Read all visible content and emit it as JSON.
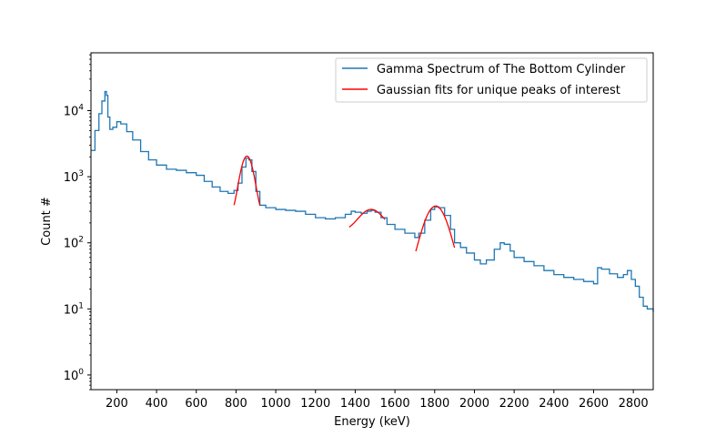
{
  "chart_data": {
    "type": "line",
    "title": "",
    "xlabel": "Energy (keV)",
    "ylabel": "Count #",
    "xlim": [
      70,
      2900
    ],
    "ylim": [
      0.6,
      75000
    ],
    "yscale": "log",
    "x_ticks": [
      200,
      400,
      600,
      800,
      1000,
      1200,
      1400,
      1600,
      1800,
      2000,
      2200,
      2400,
      2600,
      2800
    ],
    "x_tick_labels": [
      "200",
      "400",
      "600",
      "800",
      "1000",
      "1200",
      "1400",
      "1600",
      "1800",
      "2000",
      "2200",
      "2400",
      "2600",
      "2800"
    ],
    "y_ticks": [
      1,
      10,
      100,
      1000,
      10000
    ],
    "y_tick_labels": [
      {
        "base": "10",
        "exp": "0"
      },
      {
        "base": "10",
        "exp": "1"
      },
      {
        "base": "10",
        "exp": "2"
      },
      {
        "base": "10",
        "exp": "3"
      },
      {
        "base": "10",
        "exp": "4"
      }
    ],
    "grid": false,
    "legend_position": "top-right",
    "series": [
      {
        "name": "Gamma Spectrum of The Bottom Cylinder",
        "color": "#1f77b4",
        "style": "step",
        "points": [
          [
            70,
            2500
          ],
          [
            90,
            5000
          ],
          [
            110,
            9000
          ],
          [
            125,
            14000
          ],
          [
            140,
            19500
          ],
          [
            148,
            17000
          ],
          [
            155,
            8000
          ],
          [
            165,
            5200
          ],
          [
            180,
            5600
          ],
          [
            200,
            6800
          ],
          [
            220,
            6300
          ],
          [
            250,
            4800
          ],
          [
            280,
            3600
          ],
          [
            320,
            2400
          ],
          [
            360,
            1800
          ],
          [
            400,
            1500
          ],
          [
            450,
            1300
          ],
          [
            500,
            1250
          ],
          [
            550,
            1150
          ],
          [
            600,
            1050
          ],
          [
            640,
            850
          ],
          [
            680,
            700
          ],
          [
            720,
            600
          ],
          [
            760,
            560
          ],
          [
            790,
            620
          ],
          [
            810,
            800
          ],
          [
            830,
            1400
          ],
          [
            850,
            1900
          ],
          [
            865,
            1800
          ],
          [
            880,
            1200
          ],
          [
            900,
            600
          ],
          [
            920,
            370
          ],
          [
            950,
            340
          ],
          [
            1000,
            320
          ],
          [
            1050,
            310
          ],
          [
            1100,
            300
          ],
          [
            1150,
            270
          ],
          [
            1200,
            240
          ],
          [
            1250,
            230
          ],
          [
            1300,
            240
          ],
          [
            1350,
            270
          ],
          [
            1380,
            300
          ],
          [
            1400,
            290
          ],
          [
            1430,
            280
          ],
          [
            1460,
            300
          ],
          [
            1480,
            310
          ],
          [
            1500,
            290
          ],
          [
            1530,
            240
          ],
          [
            1560,
            190
          ],
          [
            1600,
            160
          ],
          [
            1650,
            140
          ],
          [
            1700,
            120
          ],
          [
            1720,
            140
          ],
          [
            1750,
            220
          ],
          [
            1780,
            320
          ],
          [
            1800,
            350
          ],
          [
            1820,
            340
          ],
          [
            1850,
            260
          ],
          [
            1880,
            160
          ],
          [
            1900,
            100
          ],
          [
            1930,
            85
          ],
          [
            1960,
            70
          ],
          [
            2000,
            55
          ],
          [
            2030,
            48
          ],
          [
            2060,
            55
          ],
          [
            2100,
            80
          ],
          [
            2130,
            100
          ],
          [
            2150,
            95
          ],
          [
            2180,
            75
          ],
          [
            2200,
            60
          ],
          [
            2250,
            52
          ],
          [
            2300,
            45
          ],
          [
            2350,
            38
          ],
          [
            2400,
            33
          ],
          [
            2450,
            30
          ],
          [
            2500,
            28
          ],
          [
            2550,
            26
          ],
          [
            2600,
            24
          ],
          [
            2620,
            42
          ],
          [
            2640,
            40
          ],
          [
            2680,
            34
          ],
          [
            2720,
            30
          ],
          [
            2750,
            33
          ],
          [
            2770,
            38
          ],
          [
            2790,
            28
          ],
          [
            2810,
            22
          ],
          [
            2830,
            15
          ],
          [
            2850,
            11
          ],
          [
            2870,
            10
          ],
          [
            2900,
            9
          ]
        ]
      },
      {
        "name": "Gaussian fits for unique peaks of interest",
        "color": "#ff0000",
        "style": "line",
        "segments": [
          {
            "center": 855,
            "amplitude": 1800,
            "background": 250,
            "sigma": 28,
            "x_range": [
              790,
              920
            ]
          },
          {
            "center": 1480,
            "amplitude": 170,
            "background": 150,
            "sigma": 55,
            "x_range": [
              1370,
              1550
            ]
          },
          {
            "center": 1805,
            "amplitude": 330,
            "background": 30,
            "sigma": 50,
            "x_range": [
              1705,
              1900
            ]
          }
        ]
      }
    ]
  }
}
